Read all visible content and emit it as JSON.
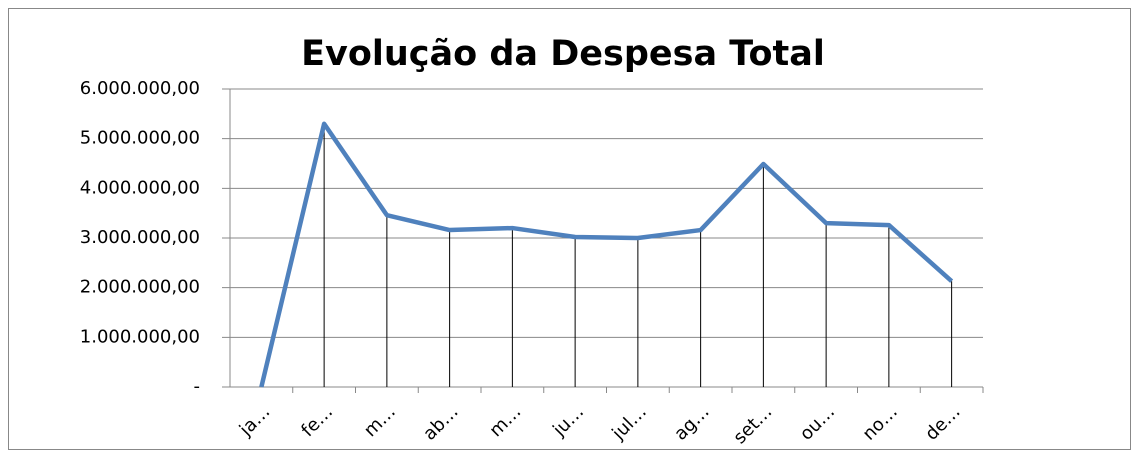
{
  "chart_data": {
    "type": "line",
    "title": "Evolução da Despesa Total",
    "categories": [
      "ja…",
      "fe…",
      "m…",
      "ab…",
      "m…",
      "ju…",
      "jul…",
      "ag…",
      "set…",
      "ou…",
      "no…",
      "de…"
    ],
    "values": [
      0,
      5300000,
      3460000,
      3160000,
      3200000,
      3020000,
      3000000,
      3160000,
      4490000,
      3300000,
      3260000,
      2130000
    ],
    "color": "#4f81bd",
    "ylim": [
      0,
      6000000
    ],
    "yticks": [
      {
        "value": 0,
        "label": "-"
      },
      {
        "value": 1000000,
        "label": "1.000.000,00"
      },
      {
        "value": 2000000,
        "label": "2.000.000,00"
      },
      {
        "value": 3000000,
        "label": "3.000.000,00"
      },
      {
        "value": 4000000,
        "label": "4.000.000,00"
      },
      {
        "value": 5000000,
        "label": "5.000.000,00"
      },
      {
        "value": 6000000,
        "label": "6.000.000,00"
      }
    ],
    "grid": true,
    "drop_lines": true
  }
}
